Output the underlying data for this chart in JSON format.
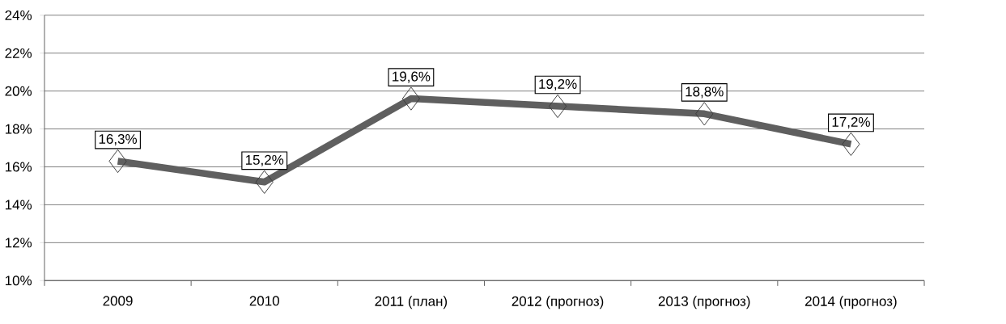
{
  "chart_data": {
    "type": "line",
    "categories": [
      "2009",
      "2010",
      "2011 (план)",
      "2012 (прогноз)",
      "2013 (прогноз)",
      "2014 (прогноз)"
    ],
    "values": [
      16.3,
      15.2,
      19.6,
      19.2,
      18.8,
      17.2
    ],
    "value_labels": [
      "16,3%",
      "15,2%",
      "19,6%",
      "19,2%",
      "18,8%",
      "17,2%"
    ],
    "color": "#5f5f5f",
    "ylim": [
      10,
      24
    ],
    "yticks": [
      {
        "value": 10,
        "label": "10%"
      },
      {
        "value": 12,
        "label": "12%"
      },
      {
        "value": 14,
        "label": "14%"
      },
      {
        "value": 16,
        "label": "16%"
      },
      {
        "value": 18,
        "label": "18%"
      },
      {
        "value": 20,
        "label": "20%"
      },
      {
        "value": 22,
        "label": "22%"
      },
      {
        "value": 24,
        "label": "24%"
      }
    ],
    "grid": "y",
    "marker": "diamond"
  }
}
